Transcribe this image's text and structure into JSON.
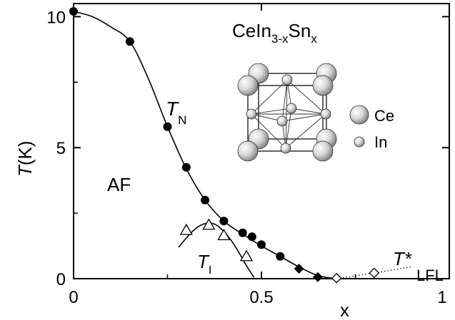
{
  "chart_data": {
    "type": "scatter",
    "title": "CeIn",
    "title_sub": "3-x",
    "title_mid": "Sn",
    "title_sub2": "x",
    "xlabel": "x",
    "ylabel_italic": "T",
    "ylabel_rest": "(K)",
    "xlim": [
      0,
      1.0
    ],
    "ylim": [
      0,
      10.5
    ],
    "x_ticks": [
      0,
      0.5,
      1.0
    ],
    "x_tick_labels": [
      "0",
      "0.5",
      "1"
    ],
    "y_ticks": [
      0,
      5,
      10
    ],
    "y_tick_labels": [
      "0",
      "5",
      "10"
    ],
    "grid": false,
    "annotations": {
      "tn": "T",
      "tn_sub": "N",
      "tl": "T",
      "tl_sub": "I",
      "af": "AF",
      "tstar": "T*",
      "lfl": "LFL",
      "ce": "Ce",
      "in": "In"
    },
    "series": [
      {
        "marker": "filled-circle",
        "x": [
          0.0,
          0.15,
          0.25,
          0.3,
          0.35,
          0.4,
          0.45,
          0.475,
          0.5,
          0.55
        ],
        "y": [
          10.2,
          9.05,
          5.8,
          4.25,
          3.0,
          2.2,
          1.75,
          1.6,
          1.3,
          0.85
        ]
      },
      {
        "marker": "filled-diamond",
        "x": [
          0.6,
          0.65
        ],
        "y": [
          0.38,
          0.06
        ]
      },
      {
        "marker": "open-triangle",
        "x": [
          0.3,
          0.36,
          0.4,
          0.46
        ],
        "y": [
          1.85,
          2.05,
          1.65,
          0.85
        ]
      },
      {
        "marker": "open-diamond",
        "x": [
          0.7,
          0.8
        ],
        "y": [
          0.02,
          0.22
        ]
      }
    ],
    "curves": [
      {
        "style": "solid",
        "x": [
          0.0,
          0.05,
          0.1,
          0.15,
          0.2,
          0.25,
          0.3,
          0.35,
          0.4,
          0.45,
          0.5,
          0.55,
          0.6,
          0.65,
          0.7
        ],
        "y": [
          10.2,
          10.0,
          9.6,
          9.05,
          7.6,
          5.8,
          4.2,
          3.0,
          2.2,
          1.7,
          1.25,
          0.85,
          0.45,
          0.12,
          0.0
        ]
      },
      {
        "style": "solid",
        "x": [
          0.28,
          0.3,
          0.32,
          0.34,
          0.36,
          0.38,
          0.4,
          0.42,
          0.44,
          0.46,
          0.48
        ],
        "y": [
          1.2,
          1.55,
          1.85,
          2.05,
          2.12,
          2.05,
          1.8,
          1.45,
          1.0,
          0.5,
          0.05
        ]
      },
      {
        "style": "dotted",
        "x": [
          0.7,
          0.8,
          0.9
        ],
        "y": [
          0.0,
          0.22,
          0.45
        ]
      }
    ]
  }
}
